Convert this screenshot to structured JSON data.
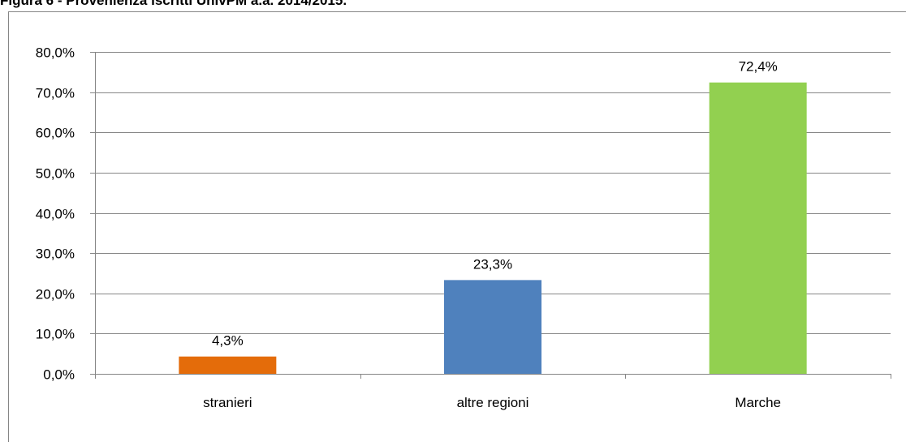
{
  "chart_data": {
    "type": "bar",
    "title": "Figura 6 - Provenienza iscritti UnivPM a.a. 2014/2015.",
    "categories": [
      "stranieri",
      "altre regioni",
      "Marche"
    ],
    "values": [
      4.3,
      23.3,
      72.4
    ],
    "value_labels": [
      "4,3%",
      "23,3%",
      "72,4%"
    ],
    "colors": [
      "#e46c0a",
      "#4f81bd",
      "#92d050"
    ],
    "ylim": [
      0,
      80
    ],
    "yticks": [
      {
        "value": 0,
        "label": "0,0%"
      },
      {
        "value": 10,
        "label": "10,0%"
      },
      {
        "value": 20,
        "label": "20,0%"
      },
      {
        "value": 30,
        "label": "30,0%"
      },
      {
        "value": 40,
        "label": "40,0%"
      },
      {
        "value": 50,
        "label": "50,0%"
      },
      {
        "value": 60,
        "label": "60,0%"
      },
      {
        "value": 70,
        "label": "70,0%"
      },
      {
        "value": 80,
        "label": "80,0%"
      }
    ],
    "grid": true
  }
}
